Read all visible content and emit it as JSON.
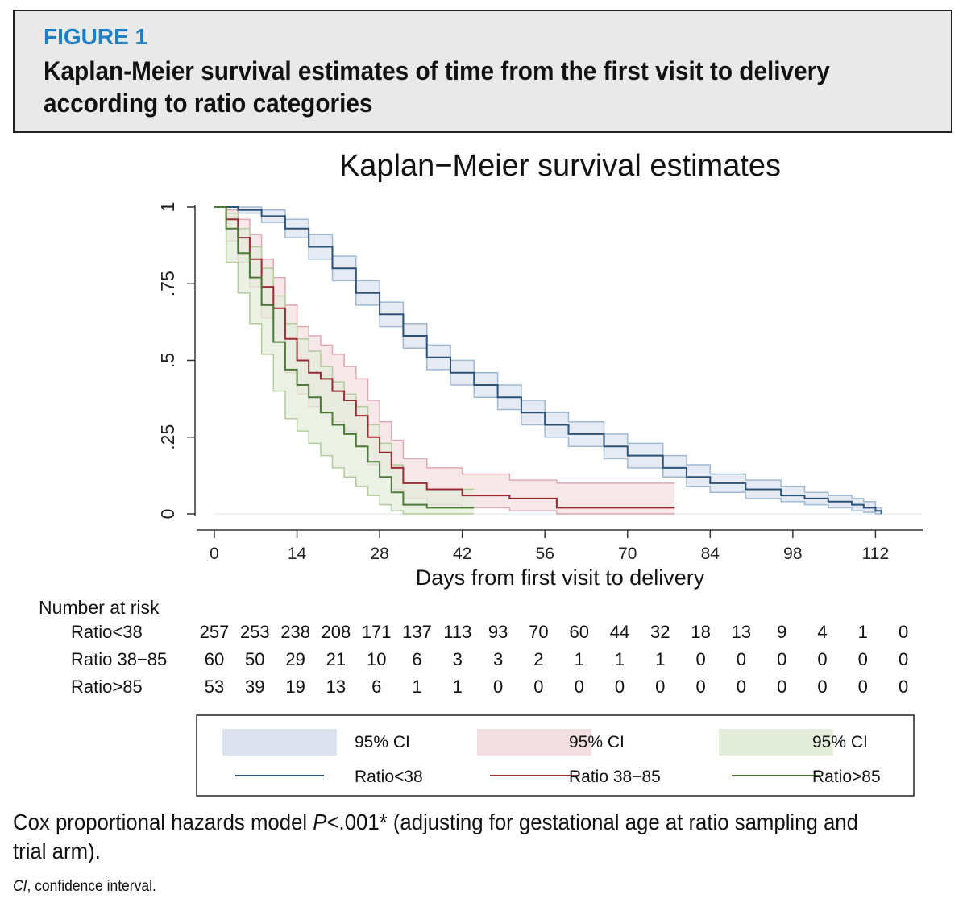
{
  "figure": {
    "label": "FIGURE 1",
    "title": "Kaplan-Meier survival estimates of time from the first visit to delivery according to ratio categories"
  },
  "footnote": {
    "text_before": "Cox proportional hazards model ",
    "p_symbol": "P",
    "text_after": "<.001* (adjusting for gestational age at ratio sampling and trial arm).",
    "ci_abbrev": "CI",
    "ci_text": ", confidence interval."
  },
  "colors": {
    "ratio_lt38_line": "#2b5379",
    "ratio_lt38_fill": "#dde3ee",
    "ratio_lt38_band": "#9fb8d3",
    "ratio_38_85_line": "#9a2b33",
    "ratio_38_85_fill": "#f3dfe2",
    "ratio_38_85_band": "#e0a8b0",
    "ratio_gt85_line": "#4d7a37",
    "ratio_gt85_fill": "#e4ecdc",
    "ratio_gt85_band": "#b3cc9c"
  },
  "chart_data": {
    "type": "line",
    "title": "Kaplan−Meier survival estimates",
    "xlabel": "Days from first visit to delivery",
    "ylabel": "",
    "xlim": [
      0,
      120
    ],
    "ylim": [
      0,
      1
    ],
    "xticks": [
      0,
      14,
      28,
      42,
      56,
      70,
      84,
      98,
      112
    ],
    "yticks": [
      0,
      0.25,
      0.5,
      0.75,
      1
    ],
    "ytick_labels": [
      "0",
      ".25",
      ".5",
      ".75",
      "1"
    ],
    "series": [
      {
        "name": "Ratio<38",
        "color": "#2b5379",
        "x": [
          0,
          4,
          8,
          12,
          16,
          20,
          24,
          28,
          32,
          36,
          40,
          44,
          48,
          52,
          56,
          60,
          66,
          70,
          76,
          80,
          84,
          90,
          96,
          100,
          104,
          108,
          110,
          112,
          113
        ],
        "y": [
          1,
          0.99,
          0.97,
          0.93,
          0.87,
          0.8,
          0.72,
          0.65,
          0.58,
          0.51,
          0.46,
          0.42,
          0.38,
          0.33,
          0.29,
          0.26,
          0.22,
          0.19,
          0.15,
          0.12,
          0.1,
          0.08,
          0.06,
          0.05,
          0.04,
          0.03,
          0.02,
          0.01,
          0
        ],
        "ci_low": [
          1,
          0.98,
          0.95,
          0.9,
          0.83,
          0.76,
          0.68,
          0.61,
          0.54,
          0.47,
          0.42,
          0.38,
          0.34,
          0.29,
          0.25,
          0.22,
          0.18,
          0.15,
          0.12,
          0.09,
          0.07,
          0.05,
          0.04,
          0.03,
          0.02,
          0.01,
          0.005,
          0,
          0
        ],
        "ci_high": [
          1,
          1,
          0.99,
          0.96,
          0.91,
          0.84,
          0.76,
          0.69,
          0.62,
          0.55,
          0.5,
          0.46,
          0.42,
          0.37,
          0.33,
          0.3,
          0.26,
          0.23,
          0.19,
          0.16,
          0.13,
          0.11,
          0.09,
          0.07,
          0.06,
          0.05,
          0.04,
          0.02,
          0
        ]
      },
      {
        "name": "Ratio 38−85",
        "color": "#9a2b33",
        "x": [
          0,
          2,
          4,
          6,
          8,
          10,
          12,
          14,
          16,
          18,
          20,
          22,
          24,
          26,
          28,
          30,
          32,
          36,
          42,
          50,
          58,
          60,
          70,
          78
        ],
        "y": [
          1,
          0.96,
          0.9,
          0.83,
          0.74,
          0.67,
          0.57,
          0.5,
          0.46,
          0.44,
          0.4,
          0.37,
          0.32,
          0.25,
          0.2,
          0.15,
          0.1,
          0.08,
          0.06,
          0.05,
          0.02,
          0.02,
          0.02,
          0.02
        ],
        "ci_low": [
          1,
          0.89,
          0.82,
          0.74,
          0.64,
          0.56,
          0.46,
          0.39,
          0.35,
          0.33,
          0.3,
          0.27,
          0.22,
          0.16,
          0.12,
          0.08,
          0.05,
          0.03,
          0.02,
          0.01,
          0,
          0,
          0,
          0
        ],
        "ci_high": [
          1,
          0.99,
          0.96,
          0.91,
          0.83,
          0.77,
          0.68,
          0.61,
          0.58,
          0.55,
          0.52,
          0.48,
          0.44,
          0.37,
          0.3,
          0.24,
          0.18,
          0.15,
          0.13,
          0.11,
          0.1,
          0.1,
          0.1,
          0.1
        ]
      },
      {
        "name": "Ratio>85",
        "color": "#4d7a37",
        "x": [
          0,
          2,
          4,
          6,
          8,
          10,
          12,
          14,
          16,
          18,
          20,
          22,
          24,
          26,
          28,
          30,
          32,
          36,
          44
        ],
        "y": [
          1,
          0.93,
          0.85,
          0.77,
          0.68,
          0.56,
          0.47,
          0.42,
          0.38,
          0.33,
          0.29,
          0.26,
          0.22,
          0.17,
          0.12,
          0.07,
          0.03,
          0.02,
          0.02
        ],
        "ci_low": [
          1,
          0.82,
          0.72,
          0.62,
          0.52,
          0.4,
          0.31,
          0.27,
          0.23,
          0.19,
          0.15,
          0.12,
          0.09,
          0.06,
          0.03,
          0.01,
          0,
          0,
          0
        ],
        "ci_high": [
          1,
          0.98,
          0.93,
          0.87,
          0.8,
          0.71,
          0.62,
          0.57,
          0.53,
          0.48,
          0.43,
          0.39,
          0.35,
          0.29,
          0.23,
          0.16,
          0.1,
          0.08,
          0.08
        ]
      }
    ],
    "risk_table": {
      "header": "Number at risk",
      "times": [
        0,
        7,
        14,
        21,
        28,
        35,
        42,
        49,
        56,
        63,
        70,
        77,
        84,
        91,
        98,
        105,
        112,
        119
      ],
      "rows": [
        {
          "label": "Ratio<38",
          "values": [
            257,
            253,
            238,
            208,
            171,
            137,
            113,
            93,
            70,
            60,
            44,
            32,
            18,
            13,
            9,
            4,
            1,
            0
          ]
        },
        {
          "label": "Ratio 38−85",
          "values": [
            60,
            50,
            29,
            21,
            10,
            6,
            3,
            3,
            2,
            1,
            1,
            1,
            0,
            0,
            0,
            0,
            0,
            0
          ]
        },
        {
          "label": "Ratio>85",
          "values": [
            53,
            39,
            19,
            13,
            6,
            1,
            1,
            0,
            0,
            0,
            0,
            0,
            0,
            0,
            0,
            0,
            0,
            0
          ]
        }
      ]
    },
    "legend": {
      "position": "bottom",
      "ci_label": "95% CI",
      "entries": [
        {
          "ci_label": "95% CI",
          "line_label": "Ratio<38"
        },
        {
          "ci_label": "95% CI",
          "line_label": "Ratio 38−85"
        },
        {
          "ci_label": "95% CI",
          "line_label": "Ratio>85"
        }
      ]
    }
  }
}
